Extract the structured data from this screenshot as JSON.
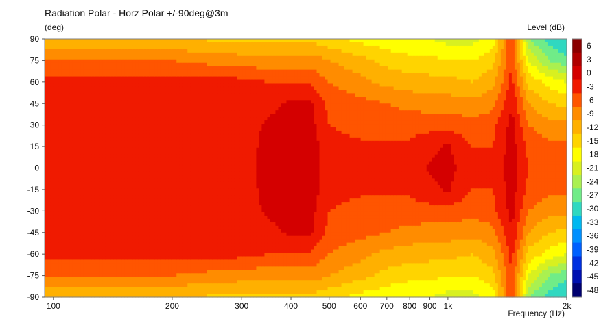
{
  "chart_data": {
    "type": "heatmap",
    "title": "Radiation Polar - Horz Polar +/-90deg@3m",
    "ylabel": "(deg)",
    "xlabel": "Frequency  (Hz)",
    "zlabel": "Level  (dB)",
    "x_scale": "log",
    "xlim": [
      95,
      2000
    ],
    "ylim": [
      -90,
      90
    ],
    "x_ticks": [
      {
        "v": 100,
        "label": "100"
      },
      {
        "v": 200,
        "label": "200"
      },
      {
        "v": 300,
        "label": "300"
      },
      {
        "v": 400,
        "label": "400"
      },
      {
        "v": 500,
        "label": "500"
      },
      {
        "v": 600,
        "label": "600"
      },
      {
        "v": 700,
        "label": "700"
      },
      {
        "v": 800,
        "label": "800"
      },
      {
        "v": 900,
        "label": "900"
      },
      {
        "v": 1000,
        "label": "1k"
      },
      {
        "v": 2000,
        "label": "2k"
      }
    ],
    "y_ticks": [
      90,
      75,
      60,
      45,
      30,
      15,
      0,
      -15,
      -30,
      -45,
      -60,
      -75,
      -90
    ],
    "colorbar_ticks": [
      6,
      3,
      0,
      -3,
      -6,
      -9,
      -12,
      -15,
      -18,
      -21,
      -24,
      -27,
      -30,
      -33,
      -36,
      -39,
      -42,
      -45,
      -48
    ],
    "colorbar_colors": [
      "#8b0000",
      "#b00000",
      "#d40000",
      "#f01a00",
      "#ff5500",
      "#ff8c00",
      "#ffb000",
      "#ffd400",
      "#ffff00",
      "#d8f020",
      "#aaf050",
      "#70ec88",
      "#30d8c0",
      "#00b8f0",
      "#0090ff",
      "#0060ff",
      "#0030e0",
      "#0010b0",
      "#000070"
    ],
    "frequencies": [
      100,
      150,
      200,
      250,
      300,
      350,
      400,
      450,
      500,
      600,
      700,
      800,
      900,
      1000,
      1150,
      1300,
      1450,
      1600,
      1800,
      2000
    ],
    "angles": [
      0,
      15,
      30,
      45,
      60,
      75,
      90
    ],
    "level_rows": [
      [
        -1.5,
        -1.5,
        -1.5,
        -1.5,
        -1.5,
        1,
        1.5,
        1.5,
        -1.5,
        -2,
        -2,
        -2,
        0.5,
        1,
        -2,
        -2,
        1.5,
        -3,
        -4,
        -4
      ],
      [
        -1.5,
        -1.5,
        -1.5,
        -1.5,
        -1.5,
        1,
        1.5,
        1.5,
        -2,
        -2.5,
        -2.5,
        -2.5,
        -1,
        0.5,
        -3,
        -3,
        1.5,
        -4,
        -5,
        -5
      ],
      [
        -1.5,
        -1.5,
        -1.5,
        -1.5,
        -1.5,
        0.5,
        1.5,
        1,
        -3,
        -4,
        -4.5,
        -4,
        -4,
        -4,
        -5,
        -4,
        1,
        -6,
        -8,
        -8
      ],
      [
        -1.5,
        -1.5,
        -1.5,
        -1.5,
        -1.5,
        -1,
        0.5,
        0.5,
        -4,
        -5,
        -6,
        -7,
        -7.5,
        -7.5,
        -8,
        -7,
        0,
        -9,
        -12,
        -13
      ],
      [
        -1.5,
        -1.5,
        -1.5,
        -2,
        -2,
        -3,
        -3.5,
        -3.5,
        -6,
        -8,
        -10,
        -10.5,
        -11,
        -11,
        -12,
        -10,
        -2,
        -13,
        -16,
        -18
      ],
      [
        -6,
        -6,
        -6,
        -7,
        -7.5,
        -8,
        -8,
        -7.5,
        -9,
        -11,
        -13,
        -14,
        -14,
        -15,
        -15,
        -13,
        -3,
        -18,
        -24,
        -26
      ],
      [
        -12,
        -12,
        -12,
        -12.5,
        -13,
        -13,
        -13,
        -13,
        -14,
        -16,
        -17,
        -18,
        -18,
        -19,
        -19,
        -17,
        -3,
        -24,
        -28,
        -30
      ]
    ]
  }
}
